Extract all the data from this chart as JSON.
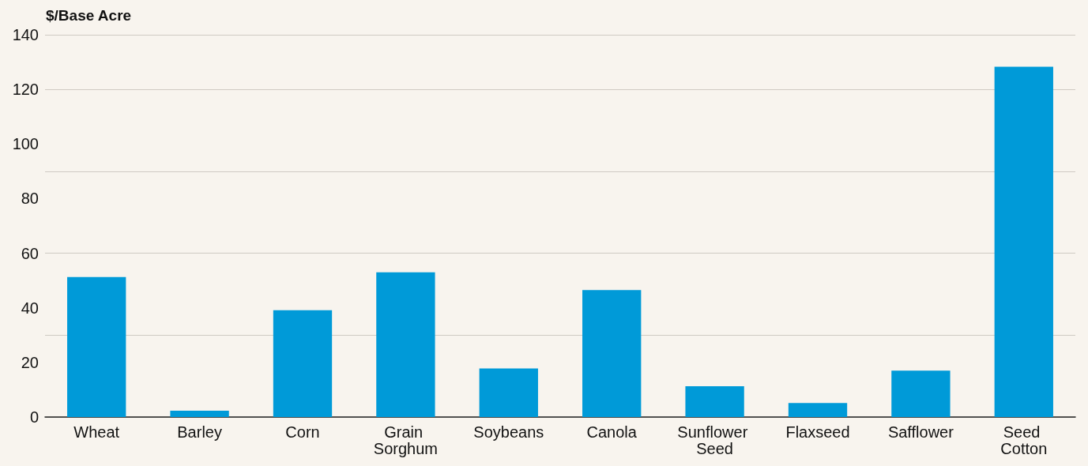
{
  "chart_data": {
    "type": "bar",
    "ylabel": "$/Base Acre",
    "categories": [
      "Wheat",
      "Barley",
      "Corn",
      "Grain Sorghum",
      "Soybeans",
      "Canola",
      "Sunflower Seed",
      "Flaxseed",
      "Safflower",
      "Seed Cotton"
    ],
    "values": [
      51.3,
      2.3,
      39.1,
      53,
      17.8,
      46.5,
      11.3,
      5.1,
      17,
      128.3
    ],
    "color": "#009ad8",
    "ylim": [
      0,
      140
    ],
    "yticks": [
      0,
      20,
      40,
      60,
      80,
      100,
      120,
      140
    ],
    "grid": "y"
  }
}
